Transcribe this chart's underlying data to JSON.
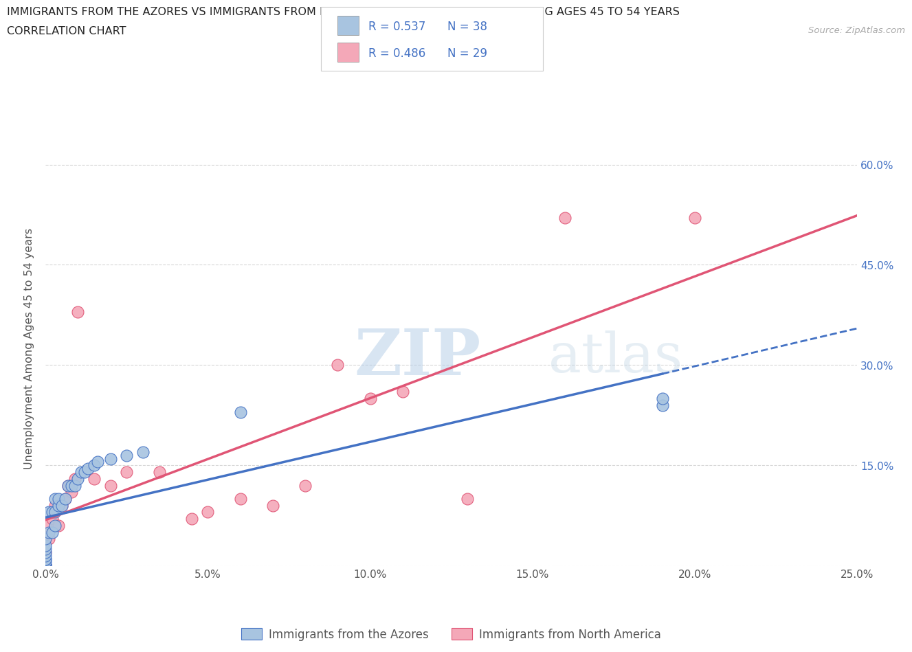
{
  "title_line1": "IMMIGRANTS FROM THE AZORES VS IMMIGRANTS FROM NORTH AMERICA UNEMPLOYMENT AMONG AGES 45 TO 54 YEARS",
  "title_line2": "CORRELATION CHART",
  "source": "Source: ZipAtlas.com",
  "ylabel": "Unemployment Among Ages 45 to 54 years",
  "xlim": [
    0.0,
    0.25
  ],
  "ylim": [
    0.0,
    0.65
  ],
  "xticks": [
    0.0,
    0.05,
    0.1,
    0.15,
    0.2,
    0.25
  ],
  "ytick_values": [
    0.0,
    0.15,
    0.3,
    0.45,
    0.6
  ],
  "right_ytick_labels": [
    "60.0%",
    "45.0%",
    "30.0%",
    "15.0%"
  ],
  "right_ytick_values": [
    0.6,
    0.45,
    0.3,
    0.15
  ],
  "color_azores": "#a8c4e0",
  "color_north_america": "#f4a8b8",
  "line_color_azores": "#4472c4",
  "line_color_north_america": "#e05575",
  "watermark_zip": "ZIP",
  "watermark_atlas": "atlas",
  "label_azores": "Immigrants from the Azores",
  "label_north_america": "Immigrants from North America",
  "azores_x": [
    0.0,
    0.0,
    0.0,
    0.0,
    0.0,
    0.0,
    0.0,
    0.0,
    0.0,
    0.0,
    0.0,
    0.0,
    0.001,
    0.001,
    0.002,
    0.002,
    0.003,
    0.003,
    0.003,
    0.004,
    0.004,
    0.005,
    0.006,
    0.007,
    0.008,
    0.009,
    0.01,
    0.011,
    0.012,
    0.013,
    0.015,
    0.016,
    0.02,
    0.025,
    0.03,
    0.06,
    0.19,
    0.19
  ],
  "azores_y": [
    0.0,
    0.0,
    0.0,
    0.0,
    0.005,
    0.01,
    0.01,
    0.015,
    0.02,
    0.025,
    0.03,
    0.04,
    0.05,
    0.08,
    0.05,
    0.08,
    0.06,
    0.08,
    0.1,
    0.09,
    0.1,
    0.09,
    0.1,
    0.12,
    0.12,
    0.12,
    0.13,
    0.14,
    0.14,
    0.145,
    0.15,
    0.155,
    0.16,
    0.165,
    0.17,
    0.23,
    0.24,
    0.25
  ],
  "north_america_x": [
    0.0,
    0.0,
    0.0,
    0.0,
    0.001,
    0.002,
    0.003,
    0.004,
    0.005,
    0.006,
    0.007,
    0.008,
    0.009,
    0.01,
    0.015,
    0.02,
    0.025,
    0.035,
    0.045,
    0.05,
    0.06,
    0.07,
    0.08,
    0.09,
    0.1,
    0.11,
    0.13,
    0.16,
    0.2
  ],
  "north_america_y": [
    0.0,
    0.02,
    0.04,
    0.06,
    0.04,
    0.07,
    0.09,
    0.06,
    0.09,
    0.1,
    0.12,
    0.11,
    0.13,
    0.38,
    0.13,
    0.12,
    0.14,
    0.14,
    0.07,
    0.08,
    0.1,
    0.09,
    0.12,
    0.3,
    0.25,
    0.26,
    0.1,
    0.52,
    0.52
  ],
  "background_color": "#ffffff",
  "grid_color": "#cccccc",
  "title_color": "#222222",
  "axis_label_color": "#555555",
  "tick_label_color_right": "#4472c4",
  "tick_label_color_bottom": "#555555"
}
